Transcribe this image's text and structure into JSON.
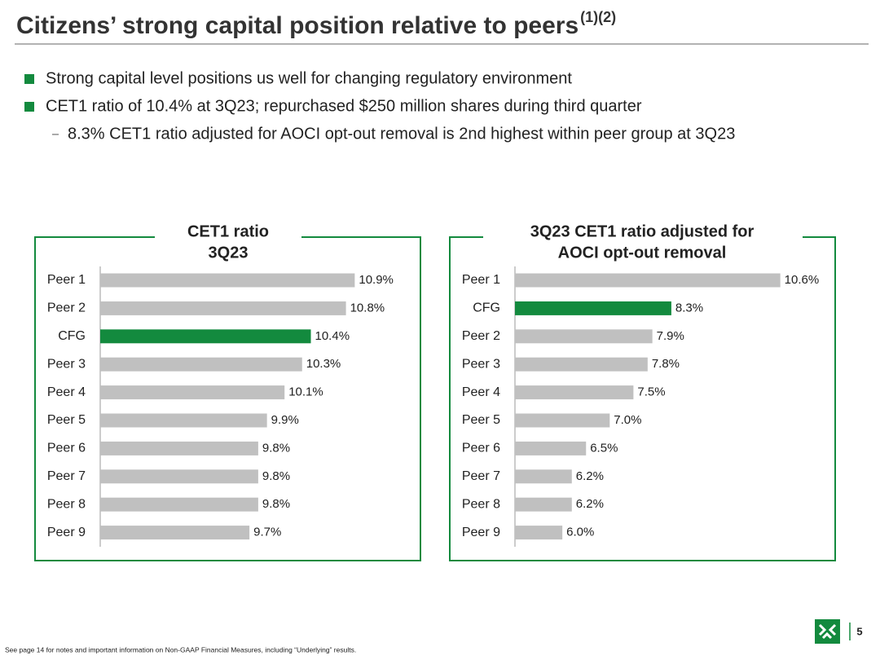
{
  "header": {
    "title": "Citizens’ strong capital position relative to peers",
    "superscript": "(1)(2)"
  },
  "bullets": [
    {
      "level": 1,
      "text": "Strong capital level positions us well for changing regulatory environment"
    },
    {
      "level": 1,
      "text": "CET1 ratio of 10.4% at 3Q23; repurchased $250 million shares during third quarter"
    },
    {
      "level": 2,
      "text": "8.3% CET1 ratio adjusted for AOCI opt-out removal is 2nd highest within peer group at 3Q23"
    }
  ],
  "chart_data": [
    {
      "type": "hbar",
      "title": [
        "CET1 ratio",
        "3Q23"
      ],
      "categories": [
        "Peer 1",
        "Peer 2",
        "CFG",
        "Peer 3",
        "Peer 4",
        "Peer 5",
        "Peer 6",
        "Peer 7",
        "Peer 8",
        "Peer 9"
      ],
      "values": [
        10.9,
        10.8,
        10.4,
        10.3,
        10.1,
        9.9,
        9.8,
        9.8,
        9.8,
        9.7
      ],
      "value_labels": [
        "10.9%",
        "10.8%",
        "10.4%",
        "10.3%",
        "10.1%",
        "9.9%",
        "9.8%",
        "9.8%",
        "9.8%",
        "9.7%"
      ],
      "colors": [
        "#c0c0c0",
        "#c0c0c0",
        "#138a3e",
        "#c0c0c0",
        "#c0c0c0",
        "#c0c0c0",
        "#c0c0c0",
        "#c0c0c0",
        "#c0c0c0",
        "#c0c0c0"
      ],
      "xlim": [
        8,
        11.5
      ]
    },
    {
      "type": "hbar",
      "title": [
        "3Q23 CET1 ratio adjusted for",
        "AOCI opt-out removal"
      ],
      "categories": [
        "Peer 1",
        "CFG",
        "Peer 2",
        "Peer 3",
        "Peer 4",
        "Peer 5",
        "Peer 6",
        "Peer 7",
        "Peer 8",
        "Peer 9"
      ],
      "values": [
        10.6,
        8.3,
        7.9,
        7.8,
        7.5,
        7.0,
        6.5,
        6.2,
        6.2,
        6.0
      ],
      "value_labels": [
        "10.6%",
        "8.3%",
        "7.9%",
        "7.8%",
        "7.5%",
        "7.0%",
        "6.5%",
        "6.2%",
        "6.2%",
        "6.0%"
      ],
      "colors": [
        "#c0c0c0",
        "#138a3e",
        "#c0c0c0",
        "#c0c0c0",
        "#c0c0c0",
        "#c0c0c0",
        "#c0c0c0",
        "#c0c0c0",
        "#c0c0c0",
        "#c0c0c0"
      ],
      "xlim": [
        5,
        11.5
      ]
    }
  ],
  "footer": {
    "note": "See page 14 for notes and important information on Non-GAAP Financial Measures, including “Underlying” results.",
    "page_number": "5"
  }
}
